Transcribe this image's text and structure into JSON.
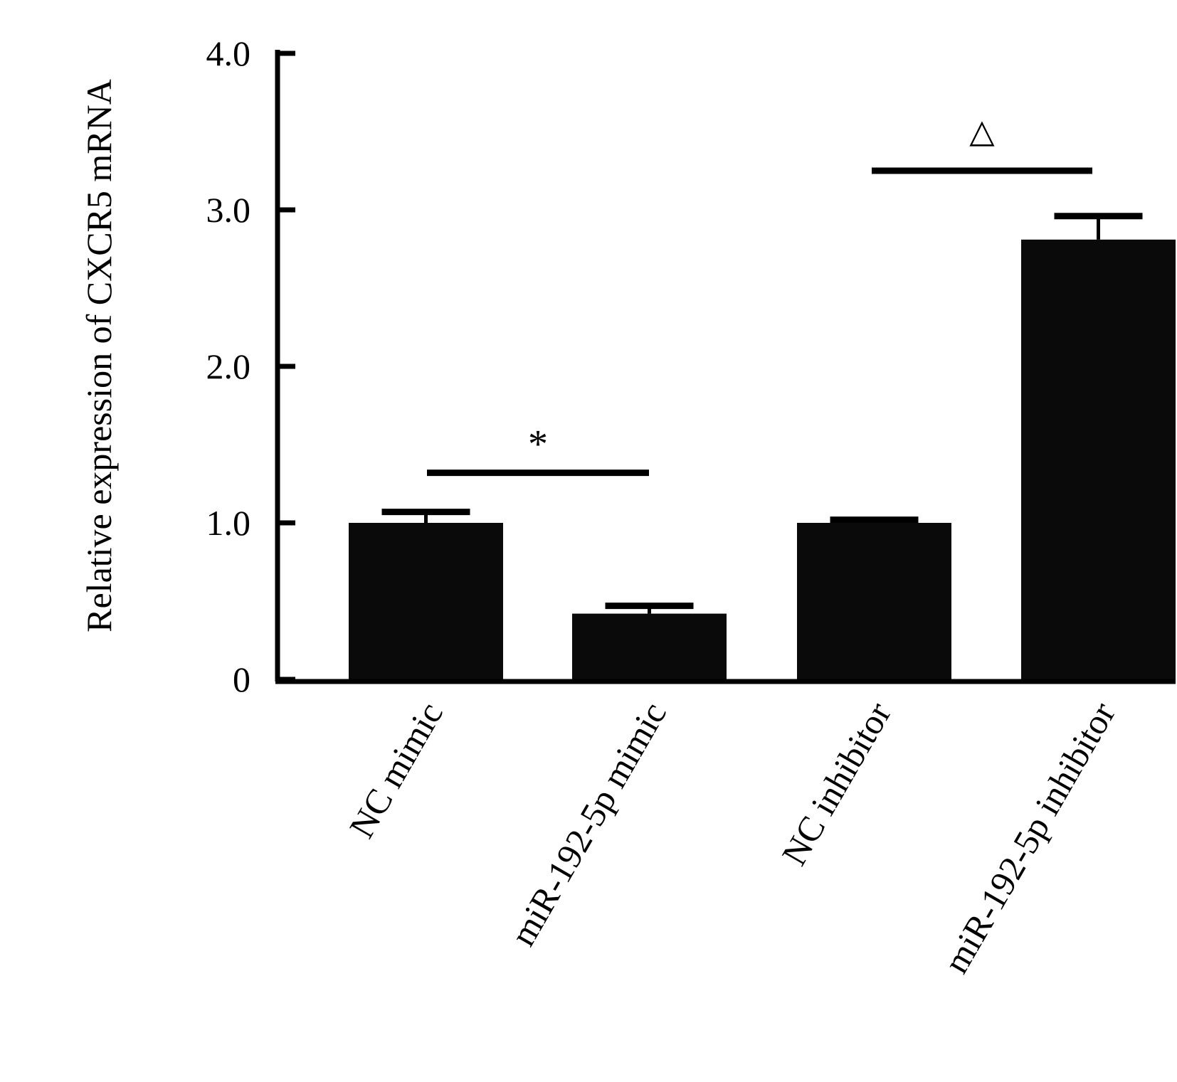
{
  "chart_data": {
    "type": "bar",
    "title": "",
    "xlabel": "",
    "ylabel": "Relative expression of CXCR5 mRNA",
    "ylim": [
      0,
      4.0
    ],
    "yticks": [
      0,
      1.0,
      2.0,
      3.0,
      4.0
    ],
    "ytick_labels": [
      "0",
      "1.0",
      "2.0",
      "3.0",
      "4.0"
    ],
    "categories": [
      "NC mimic",
      "miR-192-5p mimic",
      "NC inhibitor",
      "miR-192-5p inhibitor"
    ],
    "values": [
      1.0,
      0.42,
      1.0,
      2.81
    ],
    "error_upper": [
      1.07,
      0.47,
      1.02,
      2.96
    ],
    "bar_color": "#0a0a0a",
    "grid": false,
    "annotations": [
      {
        "text": "*",
        "from": "NC mimic",
        "to": "miR-192-5p mimic",
        "y": 1.32
      },
      {
        "text": "△",
        "from": "NC inhibitor",
        "to": "miR-192-5p inhibitor",
        "y": 3.25
      }
    ]
  }
}
